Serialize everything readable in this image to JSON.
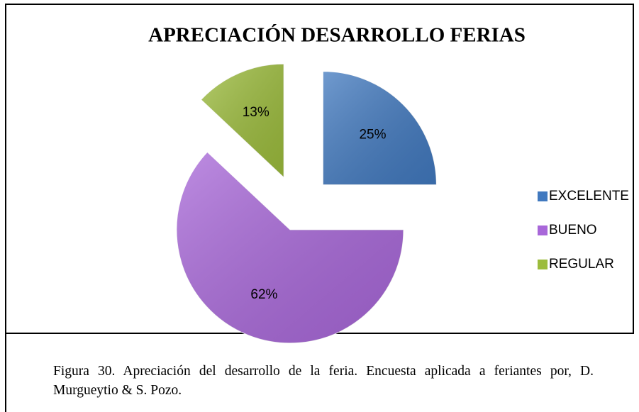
{
  "chart_data": {
    "type": "pie",
    "title": "APRECIACIÓN DESARROLLO FERIAS",
    "categories": [
      "EXCELENTE",
      "BUENO",
      "REGULAR"
    ],
    "values": [
      25,
      62,
      13
    ],
    "value_labels": [
      "25%",
      "62%",
      "13%"
    ],
    "colors": [
      "#4179bf",
      "#a867d9",
      "#9cbc3c"
    ],
    "legend": "right"
  },
  "caption": "Figura 30. Apreciación del desarrollo de la feria. Encuesta aplicada a feriantes por, D. Murgueytio & S. Pozo."
}
